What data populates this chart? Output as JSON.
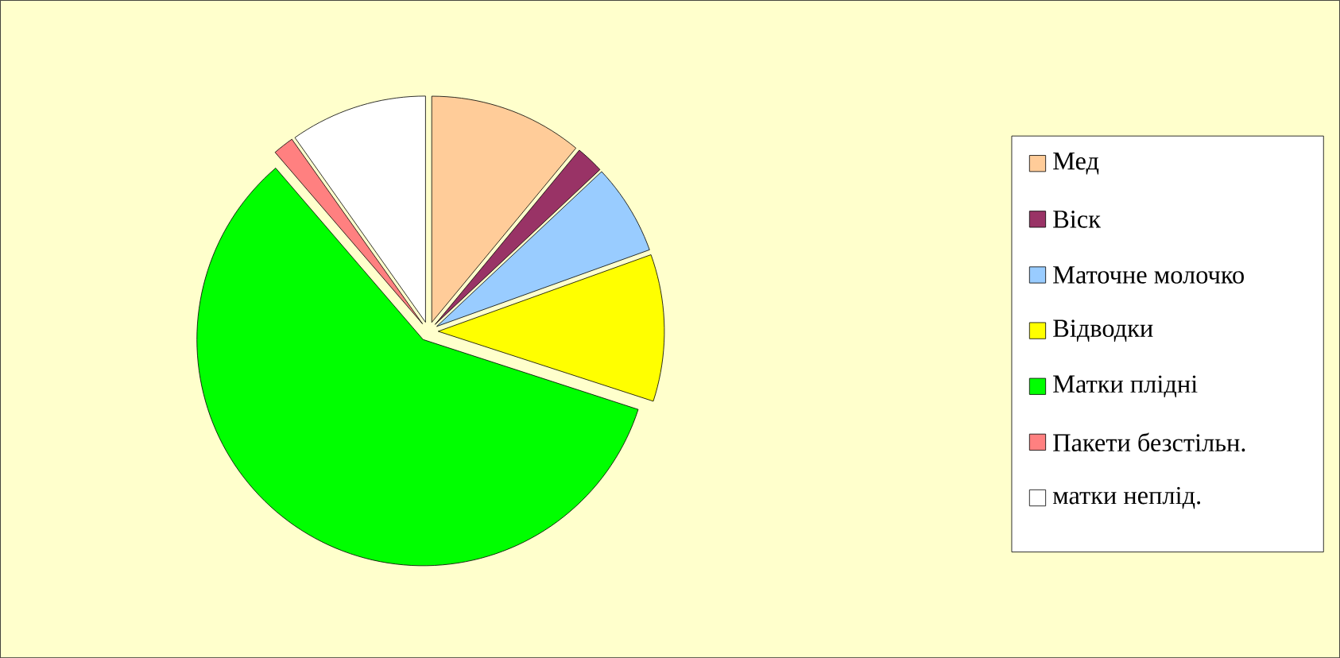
{
  "chart_data": {
    "type": "pie",
    "categories": [
      "Мед",
      "Віск",
      "Маточне молочко",
      "Відводки",
      "Матки плідні",
      "Пакети безстільн.",
      "матки неплід."
    ],
    "values": [
      11,
      2,
      6.5,
      10.5,
      58.7,
      1.5,
      9.8
    ],
    "colors": [
      "#ffcc99",
      "#993366",
      "#99ccff",
      "#ffff00",
      "#00ff00",
      "#ff8080",
      "#ffffff"
    ],
    "legend": "right"
  }
}
